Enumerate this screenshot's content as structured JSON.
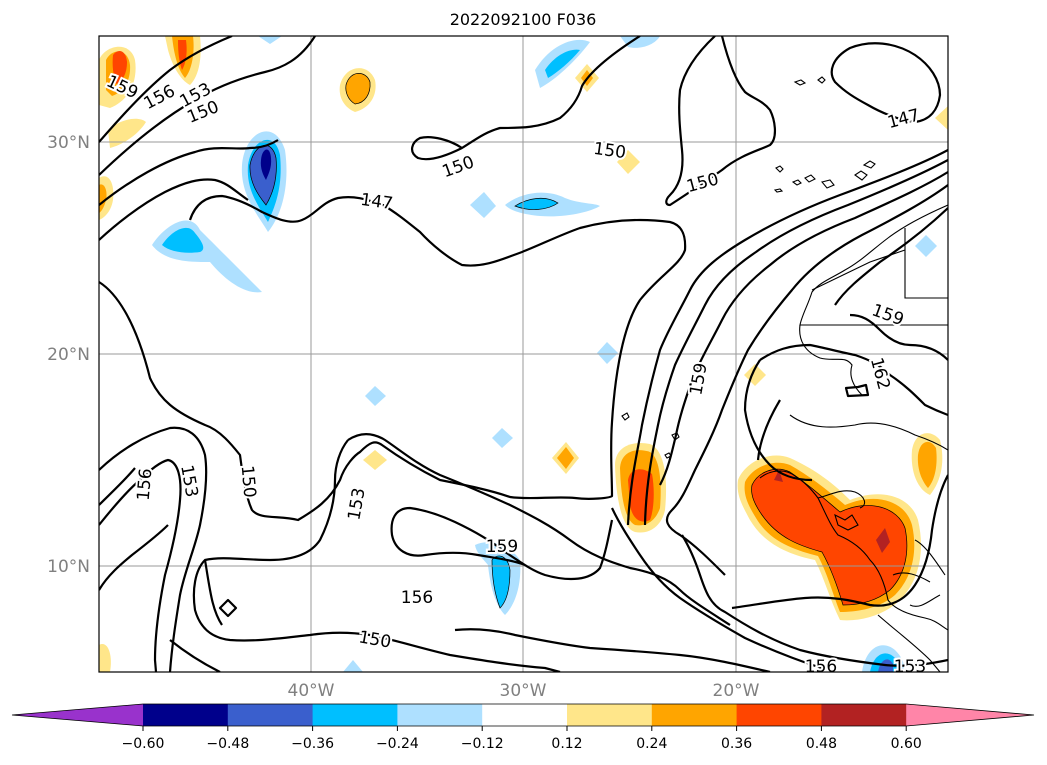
{
  "title": "2022092100 F036",
  "map": {
    "lat_labels": [
      "30°N",
      "20°N",
      "10°N"
    ],
    "lon_labels": [
      "40°W",
      "30°W",
      "20°W"
    ],
    "contour_labels": [
      "159",
      "156",
      "153",
      "150",
      "150",
      "150",
      "147",
      "150",
      "147",
      "159",
      "162",
      "159",
      "156",
      "153",
      "150",
      "153",
      "159",
      "156",
      "150",
      "156",
      "153"
    ],
    "colors": {
      "neg_060": "#9932cc",
      "neg_048": "#00008b",
      "neg_036": "#3a5fcd",
      "neg_024": "#00bfff",
      "neg_012": "#aee0ff",
      "neutral": "#ffffff",
      "pos_012": "#ffe68a",
      "pos_024": "#ffa500",
      "pos_036": "#ff4500",
      "pos_048": "#b22222",
      "pos_060": "#ff85a8"
    }
  },
  "colorbar": {
    "ticks": [
      "−0.60",
      "−0.48",
      "−0.36",
      "−0.24",
      "−0.12",
      "0.12",
      "0.24",
      "0.36",
      "0.48",
      "0.60"
    ],
    "colors": [
      "#9932cc",
      "#00008b",
      "#3a5fcd",
      "#00bfff",
      "#aee0ff",
      "#ffffff",
      "#ffe68a",
      "#ffa500",
      "#ff4500",
      "#b22222",
      "#ff85a8"
    ]
  }
}
